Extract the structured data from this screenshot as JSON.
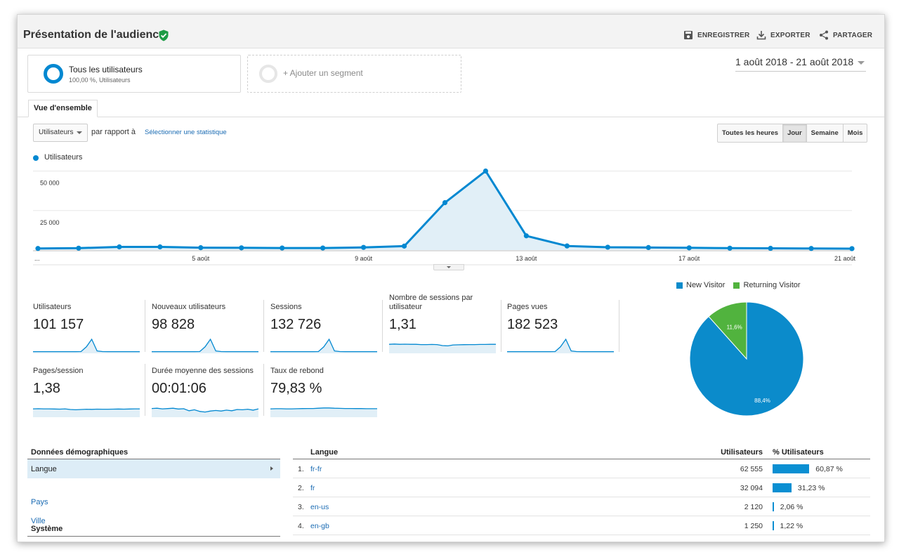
{
  "header": {
    "title": "Présentation de l'audience",
    "actions": {
      "save": "ENREGISTRER",
      "export": "EXPORTER",
      "share": "PARTAGER"
    }
  },
  "segments": {
    "primary": {
      "name": "Tous les utilisateurs",
      "sub": "100,00 %, Utilisateurs"
    },
    "add_label": "+ Ajouter un segment"
  },
  "date_range": "1 août 2018 - 21 août 2018",
  "tabs": {
    "overview": "Vue d'ensemble"
  },
  "controls": {
    "metric_select": "Utilisateurs",
    "compare_label": "par rapport à",
    "select_stat": "Sélectionner une statistique",
    "granularity": [
      "Toutes les heures",
      "Jour",
      "Semaine",
      "Mois"
    ],
    "granularity_active": "Jour"
  },
  "chart_data": {
    "type": "area",
    "series": [
      {
        "name": "Utilisateurs",
        "values": [
          1000,
          1200,
          2000,
          2000,
          1500,
          1400,
          1300,
          1300,
          1700,
          2500,
          30000,
          50000,
          9000,
          2600,
          1800,
          1600,
          1400,
          1200,
          1100,
          1000,
          900
        ]
      }
    ],
    "x": [
      1,
      2,
      3,
      4,
      5,
      6,
      7,
      8,
      9,
      10,
      11,
      12,
      13,
      14,
      15,
      16,
      17,
      18,
      19,
      20,
      21
    ],
    "x_tick_labels": [
      {
        "x": 1,
        "label": "..."
      },
      {
        "x": 5,
        "label": "5 août"
      },
      {
        "x": 9,
        "label": "9 août"
      },
      {
        "x": 13,
        "label": "13 août"
      },
      {
        "x": 17,
        "label": "17 août"
      },
      {
        "x": 21,
        "label": "21 août"
      }
    ],
    "y_tick_labels": [
      {
        "y": 25000,
        "label": "25 000"
      },
      {
        "y": 50000,
        "label": "50 000"
      }
    ],
    "ylim": [
      0,
      52000
    ],
    "color": "#0288d1",
    "grid": true
  },
  "metrics": [
    {
      "label": "Utilisateurs",
      "value": "101 157",
      "spark": [
        2,
        2,
        2,
        2,
        2,
        2,
        2,
        2,
        2,
        3,
        40,
        100,
        8,
        3,
        2,
        2,
        2,
        2,
        2,
        2,
        2
      ]
    },
    {
      "label": "Nouveaux utilisateurs",
      "value": "98 828",
      "spark": [
        2,
        2,
        2,
        2,
        2,
        2,
        2,
        2,
        2,
        3,
        40,
        100,
        8,
        3,
        2,
        2,
        2,
        2,
        2,
        2,
        2
      ]
    },
    {
      "label": "Sessions",
      "value": "132 726",
      "spark": [
        2,
        2,
        2,
        2,
        2,
        2,
        2,
        2,
        2,
        3,
        40,
        100,
        8,
        3,
        2,
        2,
        2,
        2,
        2,
        2,
        2
      ]
    },
    {
      "label": "Nombre de sessions par utilisateur",
      "value": "1,31",
      "spark": [
        60,
        62,
        60,
        61,
        60,
        60,
        58,
        58,
        59,
        58,
        50,
        48,
        55,
        56,
        57,
        58,
        58,
        59,
        59,
        60,
        60
      ]
    },
    {
      "label": "Pages vues",
      "value": "182 523",
      "spark": [
        2,
        2,
        2,
        2,
        2,
        2,
        2,
        2,
        2,
        3,
        40,
        100,
        8,
        3,
        2,
        2,
        2,
        2,
        2,
        2,
        2
      ]
    },
    {
      "label": "Pages/session",
      "value": "1,38",
      "spark": [
        55,
        56,
        55,
        55,
        54,
        53,
        55,
        50,
        48,
        50,
        52,
        51,
        53,
        52,
        52,
        53,
        54,
        53,
        54,
        55,
        55
      ]
    },
    {
      "label": "Durée moyenne des sessions",
      "value": "00:01:06",
      "spark": [
        58,
        60,
        55,
        57,
        60,
        54,
        56,
        40,
        48,
        35,
        30,
        38,
        42,
        38,
        45,
        40,
        50,
        48,
        52,
        45,
        55
      ]
    },
    {
      "label": "Taux de rebond",
      "value": "79,83 %",
      "spark": [
        55,
        56,
        56,
        55,
        55,
        56,
        57,
        58,
        58,
        60,
        62,
        62,
        60,
        59,
        58,
        58,
        57,
        57,
        56,
        56,
        56
      ]
    }
  ],
  "pie": {
    "legend": [
      {
        "name": "New Visitor",
        "color": "#0b8bcb"
      },
      {
        "name": "Returning Visitor",
        "color": "#51b33e"
      }
    ],
    "slices": [
      {
        "name": "New Visitor",
        "value": 88.4,
        "label": "88,4%",
        "color": "#0b8bcb"
      },
      {
        "name": "Returning Visitor",
        "value": 11.6,
        "label": "11,6%",
        "color": "#51b33e"
      }
    ]
  },
  "demographics": {
    "title": "Données démographiques",
    "items": [
      "Langue",
      "Pays",
      "Ville"
    ],
    "selected": "Langue",
    "system_title": "Système"
  },
  "lang_table": {
    "headers": {
      "lang": "Langue",
      "users": "Utilisateurs",
      "pct": "% Utilisateurs"
    },
    "rows": [
      {
        "idx": "1.",
        "lang": "fr-fr",
        "users": "62 555",
        "pct": "60,87 %",
        "share": 60.87
      },
      {
        "idx": "2.",
        "lang": "fr",
        "users": "32 094",
        "pct": "31,23 %",
        "share": 31.23
      },
      {
        "idx": "3.",
        "lang": "en-us",
        "users": "2 120",
        "pct": "2,06 %",
        "share": 2.06
      },
      {
        "idx": "4.",
        "lang": "en-gb",
        "users": "1 250",
        "pct": "1,22 %",
        "share": 1.22
      }
    ]
  }
}
